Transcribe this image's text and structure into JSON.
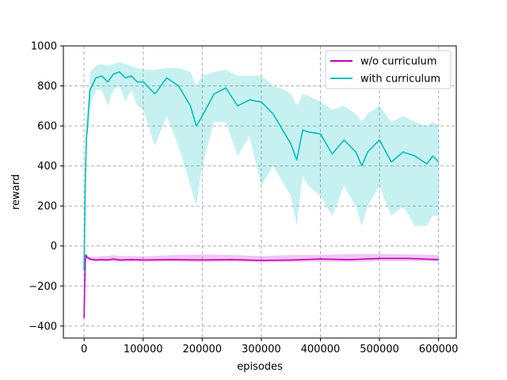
{
  "chart_data": {
    "type": "line",
    "title": "",
    "xlabel": "episodes",
    "ylabel": "reward",
    "xlim": [
      -35000,
      630000
    ],
    "ylim": [
      -460,
      1000
    ],
    "xticks": [
      0,
      100000,
      200000,
      300000,
      400000,
      500000,
      600000
    ],
    "yticks": [
      -400,
      -200,
      0,
      200,
      400,
      600,
      800,
      1000
    ],
    "xtick_labels": [
      "0",
      "100000",
      "200000",
      "300000",
      "400000",
      "500000",
      "600000"
    ],
    "ytick_labels": [
      "−400",
      "−200",
      "0",
      "200",
      "400",
      "600",
      "800",
      "1000"
    ],
    "grid": true,
    "grid_style": "dashed",
    "legend_position": "top-right",
    "series": [
      {
        "name": "w/o curriculum",
        "color": "#bf00bf",
        "x": [
          0,
          1000,
          2000,
          3000,
          5000,
          10000,
          20000,
          30000,
          40000,
          50000,
          60000,
          80000,
          100000,
          150000,
          200000,
          250000,
          300000,
          350000,
          400000,
          450000,
          500000,
          550000,
          600000
        ],
        "y": [
          -360,
          -200,
          -80,
          -45,
          -55,
          -65,
          -70,
          -68,
          -70,
          -65,
          -70,
          -68,
          -70,
          -68,
          -70,
          -68,
          -72,
          -70,
          -65,
          -68,
          -62,
          -62,
          -68
        ],
        "band_low": [
          -380,
          -230,
          -100,
          -60,
          -70,
          -75,
          -78,
          -76,
          -78,
          -76,
          -78,
          -78,
          -78,
          -78,
          -80,
          -78,
          -80,
          -80,
          -78,
          -80,
          -75,
          -75,
          -78
        ],
        "band_high": [
          -340,
          -170,
          -60,
          -35,
          -45,
          -55,
          -55,
          -50,
          -50,
          -45,
          -50,
          -50,
          -52,
          -45,
          -42,
          -45,
          -50,
          -45,
          -45,
          -40,
          -40,
          -42,
          -45
        ]
      },
      {
        "name": "with curriculum",
        "color": "#00bfbf",
        "x": [
          0,
          2000,
          4000,
          6000,
          10000,
          20000,
          30000,
          40000,
          50000,
          60000,
          70000,
          80000,
          90000,
          100000,
          120000,
          140000,
          160000,
          180000,
          190000,
          200000,
          220000,
          240000,
          260000,
          280000,
          300000,
          320000,
          340000,
          350000,
          360000,
          370000,
          380000,
          400000,
          420000,
          440000,
          460000,
          470000,
          480000,
          500000,
          520000,
          540000,
          560000,
          580000,
          590000,
          600000
        ],
        "y": [
          -120,
          300,
          540,
          600,
          780,
          840,
          850,
          820,
          860,
          870,
          840,
          850,
          820,
          820,
          760,
          840,
          800,
          700,
          600,
          650,
          760,
          790,
          700,
          730,
          720,
          660,
          560,
          510,
          430,
          580,
          570,
          560,
          460,
          530,
          470,
          400,
          470,
          530,
          420,
          470,
          450,
          410,
          450,
          420
        ],
        "band_low": [
          -220,
          150,
          450,
          550,
          700,
          780,
          780,
          700,
          780,
          800,
          720,
          780,
          700,
          680,
          500,
          650,
          500,
          300,
          200,
          400,
          620,
          620,
          450,
          550,
          300,
          400,
          300,
          250,
          100,
          350,
          300,
          250,
          150,
          300,
          200,
          100,
          200,
          300,
          150,
          200,
          100,
          100,
          150,
          150
        ],
        "band_high": [
          50,
          450,
          650,
          700,
          870,
          900,
          910,
          900,
          910,
          920,
          910,
          900,
          890,
          880,
          880,
          890,
          890,
          870,
          800,
          850,
          870,
          880,
          850,
          850,
          850,
          800,
          780,
          760,
          700,
          760,
          750,
          720,
          680,
          700,
          660,
          620,
          660,
          700,
          620,
          650,
          620,
          600,
          620,
          600
        ]
      }
    ]
  }
}
